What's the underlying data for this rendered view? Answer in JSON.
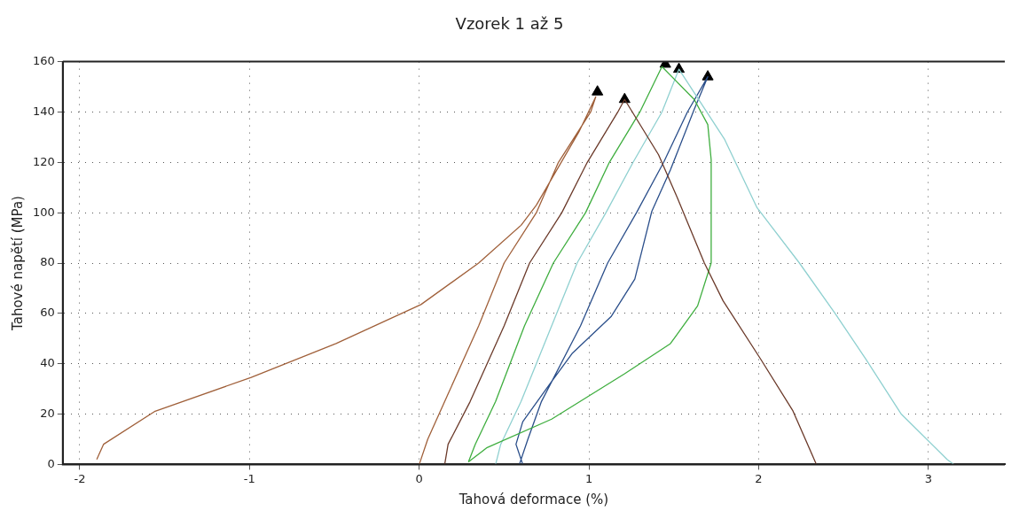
{
  "chart_data": {
    "type": "line",
    "title": "Vzorek 1 až 5",
    "xlabel": "Tahová deformace (%)",
    "ylabel": "Tahové napětí (MPa)",
    "xlim": [
      -2.1,
      3.45
    ],
    "xticks": [
      -2,
      -1,
      0,
      1,
      2,
      3
    ],
    "ylim": [
      0,
      160
    ],
    "yticks": [
      0,
      20,
      40,
      60,
      80,
      100,
      120,
      140,
      160
    ],
    "grid": true,
    "legend": false,
    "marker": "none",
    "line_style": "solid",
    "series": [
      {
        "color": "#a0603a",
        "x": [
          0,
          0.05,
          0.17,
          0.35,
          0.5,
          0.69,
          0.82,
          1.01,
          1.04,
          0.94,
          0.69,
          0.6,
          0.35,
          0.01,
          -0.49,
          -0.99,
          -1.56,
          -1.86,
          -1.9
        ],
        "values": [
          0,
          10,
          28,
          55,
          80,
          100,
          120,
          140,
          146,
          132,
          103,
          95,
          80,
          63.5,
          48,
          34.6,
          21,
          8,
          2
        ]
      },
      {
        "color": "#6b3a2a",
        "x": [
          0.15,
          0.17,
          0.3,
          0.5,
          0.65,
          0.84,
          0.99,
          1.17,
          1.21,
          1.41,
          1.52,
          1.68,
          1.79,
          2.01,
          2.2,
          2.34
        ],
        "values": [
          0,
          8,
          25,
          55,
          80,
          100,
          120,
          140,
          145,
          123,
          106,
          80,
          65,
          42,
          21.5,
          0
        ]
      },
      {
        "color": "#3fae3f",
        "x": [
          0.29,
          0.33,
          0.45,
          0.62,
          0.79,
          0.98,
          1.12,
          1.3,
          1.43
        ],
        "values": [
          1,
          8,
          25,
          55,
          80,
          100,
          120,
          140,
          158
        ]
      },
      {
        "color": "#3fae3f",
        "x": [
          1.43,
          1.62,
          1.7,
          1.72,
          1.72,
          1.64,
          1.48,
          1.21,
          0.78,
          0.4,
          0.29
        ],
        "values": [
          158,
          145,
          135,
          121,
          80,
          63,
          48,
          36,
          18,
          6.7,
          1
        ]
      },
      {
        "color": "#8fd0d0",
        "x": [
          0.45,
          0.48,
          0.6,
          0.78,
          0.93,
          1.1,
          1.26,
          1.43,
          1.53,
          1.8,
          1.99,
          2.24,
          2.45,
          2.63,
          2.84,
          3.11,
          3.15
        ],
        "values": [
          0,
          8,
          25,
          55,
          80,
          100,
          120,
          140,
          157,
          129,
          102,
          80,
          60,
          42,
          20,
          2,
          0
        ]
      },
      {
        "color": "#2a4e8a",
        "x": [
          0.59,
          0.64,
          0.72,
          0.95,
          1.11,
          1.28,
          1.44,
          1.58,
          1.7,
          1.62,
          1.48,
          1.37,
          1.27,
          1.13,
          0.9,
          0.77,
          0.61,
          0.57,
          0.61
        ],
        "values": [
          0,
          10,
          25,
          55,
          80,
          100,
          120,
          140,
          154,
          141,
          117,
          100.5,
          73.6,
          58.7,
          44,
          32,
          17,
          8,
          0
        ]
      },
      {
        "type": "scatter",
        "marker": "triangle",
        "color": "#000000",
        "x": [
          1.05,
          1.21,
          1.45,
          1.53,
          1.7
        ],
        "values": [
          148,
          145,
          159,
          157,
          154
        ]
      }
    ]
  }
}
